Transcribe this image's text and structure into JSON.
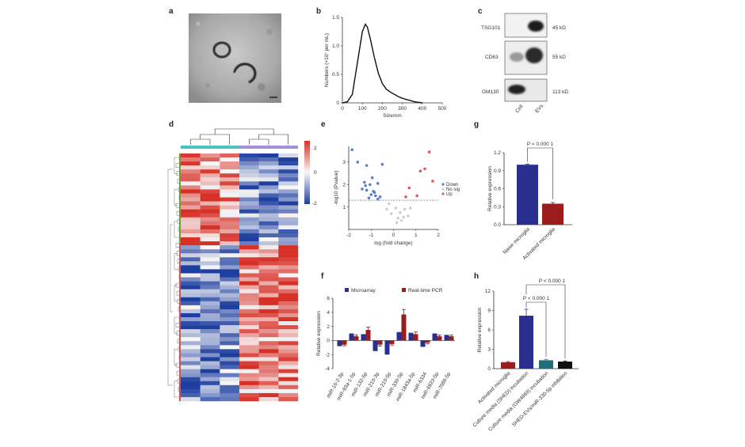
{
  "panels": {
    "a": {
      "letter": "a"
    },
    "b": {
      "letter": "b"
    },
    "c": {
      "letter": "c"
    },
    "d": {
      "letter": "d"
    },
    "e": {
      "letter": "e"
    },
    "f": {
      "letter": "f"
    },
    "g": {
      "letter": "g"
    },
    "h": {
      "letter": "h"
    }
  },
  "colors": {
    "navy": "#2a2f8f",
    "darkred": "#9b1c1c",
    "teal": "#1f6f78",
    "black": "#111111",
    "down_blue": "#5b7fc7",
    "up_red": "#e05a5a",
    "nosig_gray": "#c8d0d8",
    "heat_red": "#d73027",
    "heat_white": "#f7f7f7",
    "heat_blue": "#1f3fa0",
    "group_teal": "#47c1c3",
    "group_purple": "#a58fd3"
  },
  "chart_data": [
    {
      "panel": "b",
      "type": "line",
      "xlabel": "Size/nm",
      "ylabel": "Numbers (×10⁷ per mL)",
      "xlim": [
        0,
        500
      ],
      "ylim": [
        0,
        1.5
      ],
      "xticks": [
        "0",
        "100",
        "200",
        "300",
        "400",
        "500"
      ],
      "yticks": [
        "0",
        "0.5",
        "1.0",
        "1.5"
      ],
      "x": [
        0,
        25,
        50,
        75,
        100,
        115,
        125,
        140,
        160,
        180,
        200,
        220,
        240,
        260,
        280,
        300,
        320,
        340,
        360,
        380,
        400
      ],
      "y": [
        0,
        0.02,
        0.15,
        0.7,
        1.25,
        1.38,
        1.33,
        1.12,
        0.8,
        0.52,
        0.34,
        0.24,
        0.19,
        0.15,
        0.11,
        0.08,
        0.06,
        0.04,
        0.02,
        0.01,
        0
      ]
    },
    {
      "panel": "e",
      "type": "scatter",
      "xlabel": "log (fold change)",
      "ylabel": "-log10 (Pvalue)",
      "xlim": [
        -2,
        2
      ],
      "ylim": [
        0,
        3.7
      ],
      "xticks": [
        "-2",
        "-1",
        "0",
        "1",
        "2"
      ],
      "yticks": [
        "1",
        "2",
        "3"
      ],
      "threshold": 1.3,
      "legend": [
        "Down",
        "No sig",
        "Up"
      ],
      "down": [
        [
          -1.85,
          3.55
        ],
        [
          -1.6,
          3.0
        ],
        [
          -1.2,
          2.85
        ],
        [
          -0.95,
          2.3
        ],
        [
          -1.3,
          2.1
        ],
        [
          -1.05,
          2.0
        ],
        [
          -0.7,
          2.05
        ],
        [
          -0.5,
          2.9
        ],
        [
          -1.4,
          1.8
        ],
        [
          -1.2,
          1.75
        ],
        [
          -0.9,
          1.7
        ],
        [
          -1.0,
          1.55
        ],
        [
          -0.8,
          1.5
        ],
        [
          -0.6,
          1.45
        ],
        [
          -1.1,
          1.4
        ],
        [
          -0.7,
          1.35
        ],
        [
          -0.85,
          1.65
        ],
        [
          -1.25,
          1.95
        ]
      ],
      "up": [
        [
          1.6,
          3.45
        ],
        [
          1.4,
          2.7
        ],
        [
          1.2,
          2.6
        ],
        [
          1.75,
          2.15
        ],
        [
          0.7,
          1.85
        ],
        [
          0.55,
          1.45
        ],
        [
          1.05,
          1.5
        ]
      ],
      "nosig": [
        [
          -0.2,
          1.15
        ],
        [
          0.1,
          0.95
        ],
        [
          0.3,
          0.75
        ],
        [
          -0.1,
          0.7
        ],
        [
          0.5,
          0.9
        ],
        [
          0.45,
          0.55
        ],
        [
          0.2,
          0.5
        ],
        [
          0.65,
          0.6
        ],
        [
          0.35,
          0.4
        ],
        [
          -0.3,
          0.9
        ],
        [
          0.75,
          0.95
        ],
        [
          0.15,
          0.3
        ]
      ]
    },
    {
      "panel": "f",
      "type": "bar",
      "ylabel": "Relative expression",
      "ylim": [
        -4,
        6
      ],
      "yticks": [
        "-4",
        "-2",
        "0",
        "2",
        "4",
        "6"
      ],
      "categories": [
        "miR-16-2-3p",
        "miR-93a-1-5p",
        "miR-132-5p",
        "miR-210-3p",
        "miR-210-5p",
        "miR-330-5p",
        "miR-1843a-5p",
        "miR-6334",
        "miR-6923-5p",
        "miR-7688-5p"
      ],
      "series": [
        {
          "name": "Microarray",
          "values": [
            -0.8,
            1.0,
            0.9,
            -1.5,
            -2.0,
            1.2,
            1.1,
            -0.9,
            1.0,
            0.8
          ]
        },
        {
          "name": "Real-time PCR",
          "values": [
            -0.6,
            0.6,
            1.5,
            -0.6,
            -0.5,
            3.7,
            0.9,
            -0.3,
            0.6,
            0.6
          ]
        }
      ],
      "errors": [
        0.15,
        0.2,
        0.4,
        0.2,
        0.15,
        0.7,
        0.3,
        0.15,
        0.2,
        0.2
      ]
    },
    {
      "panel": "g",
      "type": "bar",
      "ylabel": "Relative expression",
      "ylim": [
        0,
        1.2
      ],
      "yticks": [
        "0.0",
        "0.3",
        "0.6",
        "0.9",
        "1.2"
      ],
      "categories": [
        "Naive microglia",
        "Activated microglia"
      ],
      "values": [
        1.0,
        0.35
      ],
      "errors": [
        0.01,
        0.02
      ],
      "significance": "P < 0.000 1"
    },
    {
      "panel": "h",
      "type": "bar",
      "ylabel": "Relative expression",
      "ylim": [
        0,
        12
      ],
      "yticks": [
        "0",
        "3",
        "6",
        "9",
        "12"
      ],
      "categories": [
        "Activated microglia",
        "Culture media (SHED) incubation",
        "Culture media (GW4869) incubation",
        "SHED-EVs/miR-330-5p inhibition"
      ],
      "values": [
        1.0,
        8.2,
        1.3,
        1.1
      ],
      "errors": [
        0.1,
        1.0,
        0.15,
        0.1
      ],
      "significance": [
        "P < 0.000 1",
        "P < 0.000 1"
      ]
    }
  ],
  "western": {
    "rows": [
      {
        "name": "TSG101",
        "size": "45 kD"
      },
      {
        "name": "CD63",
        "size": "55 kD"
      },
      {
        "name": "GM130",
        "size": "113 kD"
      }
    ],
    "lanes": [
      "Cell",
      "EVs"
    ]
  },
  "heatmap": {
    "colorbar_ticks": [
      "2",
      "0",
      "-2"
    ],
    "group_labels": [
      "",
      ""
    ]
  }
}
